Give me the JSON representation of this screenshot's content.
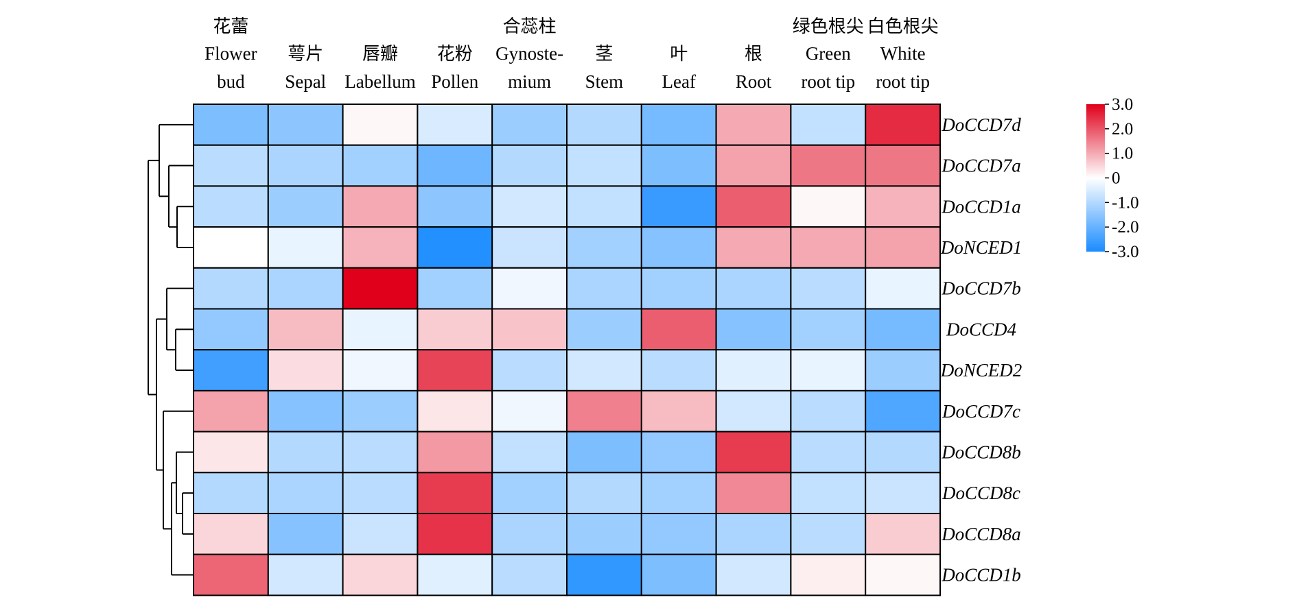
{
  "chart_data": {
    "type": "heatmap",
    "columns": [
      {
        "zh": "花蕾",
        "en": [
          "Flower",
          "bud"
        ]
      },
      {
        "zh": "",
        "en": [
          "萼片",
          "Sepal"
        ]
      },
      {
        "zh": "",
        "en": [
          "唇瓣",
          "Labellum"
        ]
      },
      {
        "zh": "",
        "en": [
          "花粉",
          "Pollen"
        ]
      },
      {
        "zh": "合蕊柱",
        "en": [
          "Gynoste-",
          "mium"
        ]
      },
      {
        "zh": "",
        "en": [
          "茎",
          "Stem"
        ]
      },
      {
        "zh": "",
        "en": [
          "叶",
          "Leaf"
        ]
      },
      {
        "zh": "",
        "en": [
          "根",
          "Root"
        ]
      },
      {
        "zh": "绿色根尖",
        "en": [
          "Green",
          "root tip"
        ]
      },
      {
        "zh": "白色根尖",
        "en": [
          "White",
          "root tip"
        ]
      }
    ],
    "rows": [
      "DoCCD7d",
      "DoCCD7a",
      "DoCCD1a",
      "DoNCED1",
      "DoCCD7b",
      "DoCCD4",
      "DoNCED2",
      "DoCCD7c",
      "DoCCD8b",
      "DoCCD8c",
      "DoCCD8a",
      "DoCCD1b"
    ],
    "values": [
      [
        -1.7,
        -1.5,
        0.1,
        -0.5,
        -1.3,
        -1.0,
        -1.8,
        1.0,
        -0.8,
        2.5
      ],
      [
        -0.9,
        -1.1,
        -1.2,
        -1.9,
        -1.0,
        -0.8,
        -1.7,
        1.1,
        1.6,
        1.6
      ],
      [
        -0.9,
        -1.3,
        1.0,
        -1.5,
        -0.6,
        -0.8,
        -2.6,
        1.9,
        0.1,
        0.9
      ],
      [
        0.0,
        -0.3,
        0.9,
        -2.9,
        -0.7,
        -1.2,
        -1.6,
        1.0,
        1.0,
        1.1
      ],
      [
        -1.0,
        -1.1,
        3.0,
        -1.2,
        -0.2,
        -1.1,
        -1.2,
        -1.1,
        -0.9,
        -0.3
      ],
      [
        -1.4,
        0.8,
        -0.3,
        0.6,
        0.7,
        -1.3,
        1.9,
        -1.6,
        -1.2,
        -1.8
      ],
      [
        -2.5,
        0.4,
        -0.2,
        2.2,
        -0.9,
        -0.6,
        -0.9,
        -0.4,
        -0.3,
        -1.3
      ],
      [
        1.1,
        -1.6,
        -1.3,
        0.3,
        -0.2,
        1.5,
        0.8,
        -0.6,
        -0.9,
        -2.3
      ],
      [
        0.3,
        -1.0,
        -0.9,
        1.2,
        -0.8,
        -1.7,
        -1.4,
        2.3,
        -0.9,
        -1.0
      ],
      [
        -1.0,
        -1.1,
        -0.9,
        2.3,
        -1.2,
        -1.0,
        -1.2,
        1.4,
        -0.8,
        -0.7
      ],
      [
        0.5,
        -1.6,
        -0.7,
        2.4,
        -1.1,
        -1.3,
        -1.4,
        -1.1,
        -0.9,
        0.6
      ],
      [
        1.8,
        -0.6,
        0.5,
        -0.4,
        -0.9,
        -2.7,
        -1.7,
        -0.6,
        0.2,
        0.1
      ]
    ],
    "color_scale": {
      "min": -3.0,
      "max": 3.0,
      "low_color": "#1a8cff",
      "mid_color": "#ffffff",
      "high_color": "#e0001b",
      "tick_labels": [
        "3.0",
        "2.0",
        "1.0",
        "0",
        "-1.0",
        "-2.0",
        "-3.0"
      ],
      "tick_values": [
        3.0,
        2.0,
        1.0,
        0,
        -1.0,
        -2.0,
        -3.0
      ]
    },
    "row_dendrogram": true,
    "grid": true
  }
}
